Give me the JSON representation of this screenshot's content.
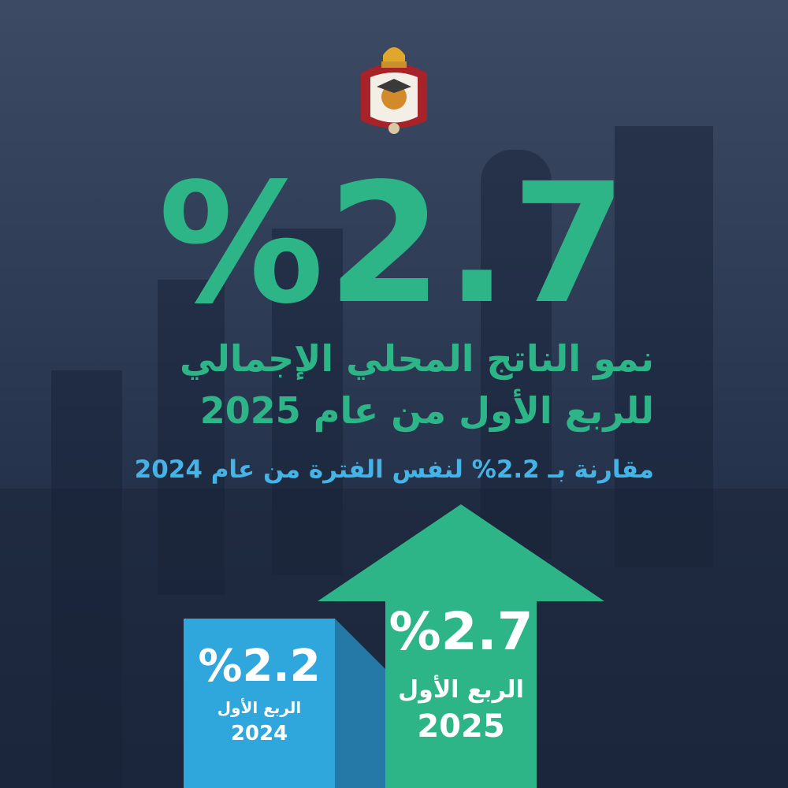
{
  "headline": {
    "value": "%2.7"
  },
  "title": {
    "line1": "نمو الناتج المحلي الإجمالي",
    "line2": "للربع الأول من عام 2025"
  },
  "subtitle": "مقارنة بـ 2.2% لنفس الفترة من عام 2024",
  "comparison": [
    {
      "value_label": "%2.2",
      "period": "الربع الأول",
      "year": "2024",
      "value": 2.2,
      "color": "#2fa6dc"
    },
    {
      "value_label": "%2.7",
      "period": "الربع الأول",
      "year": "2025",
      "value": 2.7,
      "color": "#2db587"
    }
  ],
  "colors": {
    "accent_green": "#2db587",
    "accent_blue": "#46b3e6",
    "background": "#2f3d57"
  },
  "emblem": {
    "icon": "jordan-coat-of-arms-icon"
  }
}
